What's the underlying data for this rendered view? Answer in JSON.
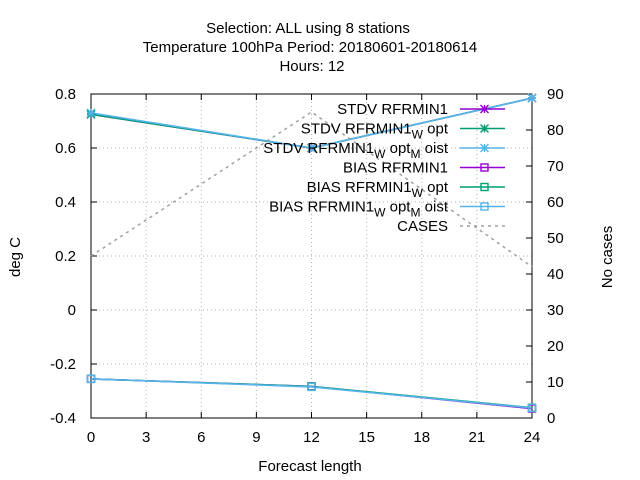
{
  "chart_data": {
    "type": "line",
    "title_lines": [
      "Selection: ALL using     8 stations",
      "Temperature 100hPa    Period: 20180601-20180614",
      "Hours:  12"
    ],
    "xlabel": "Forecast length",
    "ylabel": "deg C",
    "y2label": "No cases",
    "x_ticks": [
      "0",
      "3",
      "6",
      "9",
      "12",
      "15",
      "18",
      "21",
      "24"
    ],
    "y_ticks": [
      "-0.4",
      "-0.2",
      "0",
      "0.2",
      "0.4",
      "0.6",
      "0.8"
    ],
    "y2_ticks": [
      "0",
      "10",
      "20",
      "30",
      "40",
      "50",
      "60",
      "70",
      "80",
      "90"
    ],
    "xlim": [
      0,
      24
    ],
    "ylim": [
      -0.4,
      0.8
    ],
    "y2lim": [
      0,
      90
    ],
    "grid": true,
    "legend_position": "top-right",
    "series": [
      {
        "name": "STDV RFRMIN1",
        "name_parts": [
          "STDV RFRMIN1"
        ],
        "axis": "y1",
        "marker": "x-star",
        "color": "#9400d3",
        "x": [
          0,
          12,
          24
        ],
        "values": [
          0.725,
          0.6,
          0.785
        ]
      },
      {
        "name": "STDV RFRMIN1_W opt",
        "name_parts": [
          "STDV RFRMIN1",
          "W",
          " opt"
        ],
        "axis": "y1",
        "marker": "x-star",
        "color": "#009e73",
        "x": [
          0,
          12,
          24
        ],
        "values": [
          0.725,
          0.6,
          0.785
        ]
      },
      {
        "name": "STDV RFRMIN1_W opt_M oist",
        "name_parts": [
          "STDV RFRMIN1",
          "W",
          " opt",
          "M",
          " oist"
        ],
        "axis": "y1",
        "marker": "x-star",
        "color": "#56b4e9",
        "x": [
          0,
          12,
          24
        ],
        "values": [
          0.73,
          0.6,
          0.785
        ]
      },
      {
        "name": "BIAS RFRMIN1",
        "name_parts": [
          "BIAS RFRMIN1"
        ],
        "axis": "y1",
        "marker": "square",
        "color": "#9400d3",
        "x": [
          0,
          12,
          24
        ],
        "values": [
          -0.255,
          -0.283,
          -0.365
        ]
      },
      {
        "name": "BIAS RFRMIN1_W opt",
        "name_parts": [
          "BIAS RFRMIN1",
          "W",
          " opt"
        ],
        "axis": "y1",
        "marker": "square",
        "color": "#009e73",
        "x": [
          0,
          12,
          24
        ],
        "values": [
          -0.255,
          -0.283,
          -0.362
        ]
      },
      {
        "name": "BIAS RFRMIN1_W opt_M oist",
        "name_parts": [
          "BIAS RFRMIN1",
          "W",
          " opt",
          "M",
          " oist"
        ],
        "axis": "y1",
        "marker": "square",
        "color": "#56b4e9",
        "x": [
          0,
          12,
          24
        ],
        "values": [
          -0.255,
          -0.285,
          -0.363
        ]
      },
      {
        "name": "CASES",
        "name_parts": [
          "CASES"
        ],
        "axis": "y2",
        "marker": "none",
        "dashed": true,
        "color": "#a0a0a0",
        "x": [
          0,
          12,
          24
        ],
        "values": [
          45,
          85,
          42
        ]
      }
    ]
  }
}
